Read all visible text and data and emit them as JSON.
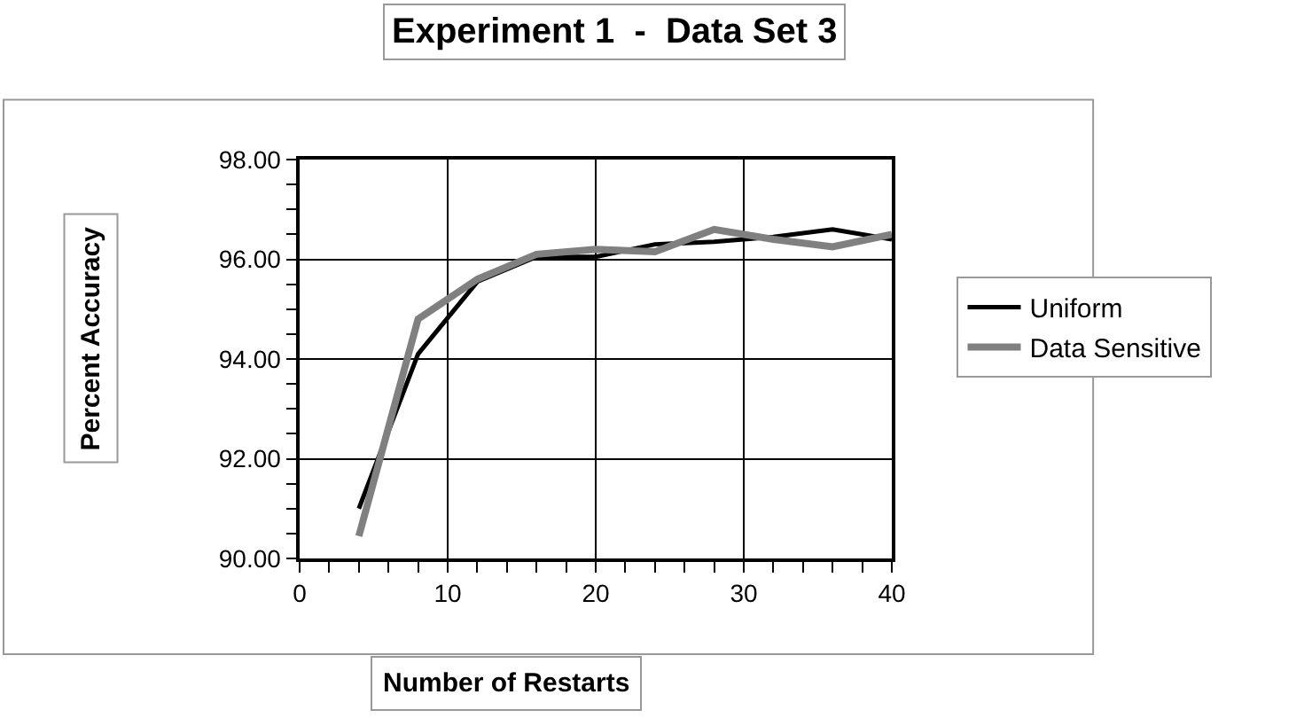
{
  "chart_data": {
    "type": "line",
    "title": "Experiment 1  -  Data Set 3",
    "xlabel": "Number of Restarts",
    "ylabel": "Percent Accuracy",
    "x": [
      4,
      8,
      12,
      16,
      20,
      24,
      28,
      32,
      36,
      40
    ],
    "series": [
      {
        "name": "Uniform",
        "color": "#000000",
        "values": [
          91.0,
          94.1,
          95.55,
          96.05,
          96.05,
          96.3,
          96.35,
          96.45,
          96.6,
          96.4
        ]
      },
      {
        "name": "Data Sensitive",
        "color": "#808080",
        "values": [
          90.45,
          94.8,
          95.6,
          96.1,
          96.2,
          96.15,
          96.6,
          96.4,
          96.25,
          96.5
        ]
      }
    ],
    "xlim": [
      0,
      40
    ],
    "xticks": [
      0,
      10,
      20,
      30,
      40
    ],
    "ylim": [
      90,
      98
    ],
    "yticks": [
      {
        "value": 90,
        "label": "90.00"
      },
      {
        "value": 92,
        "label": "92.00"
      },
      {
        "value": 94,
        "label": "94.00"
      },
      {
        "value": 96,
        "label": "96.00"
      },
      {
        "value": 98,
        "label": "98.00"
      }
    ],
    "grid": true,
    "legend": "right",
    "marker": "none",
    "line_style": "solid"
  }
}
